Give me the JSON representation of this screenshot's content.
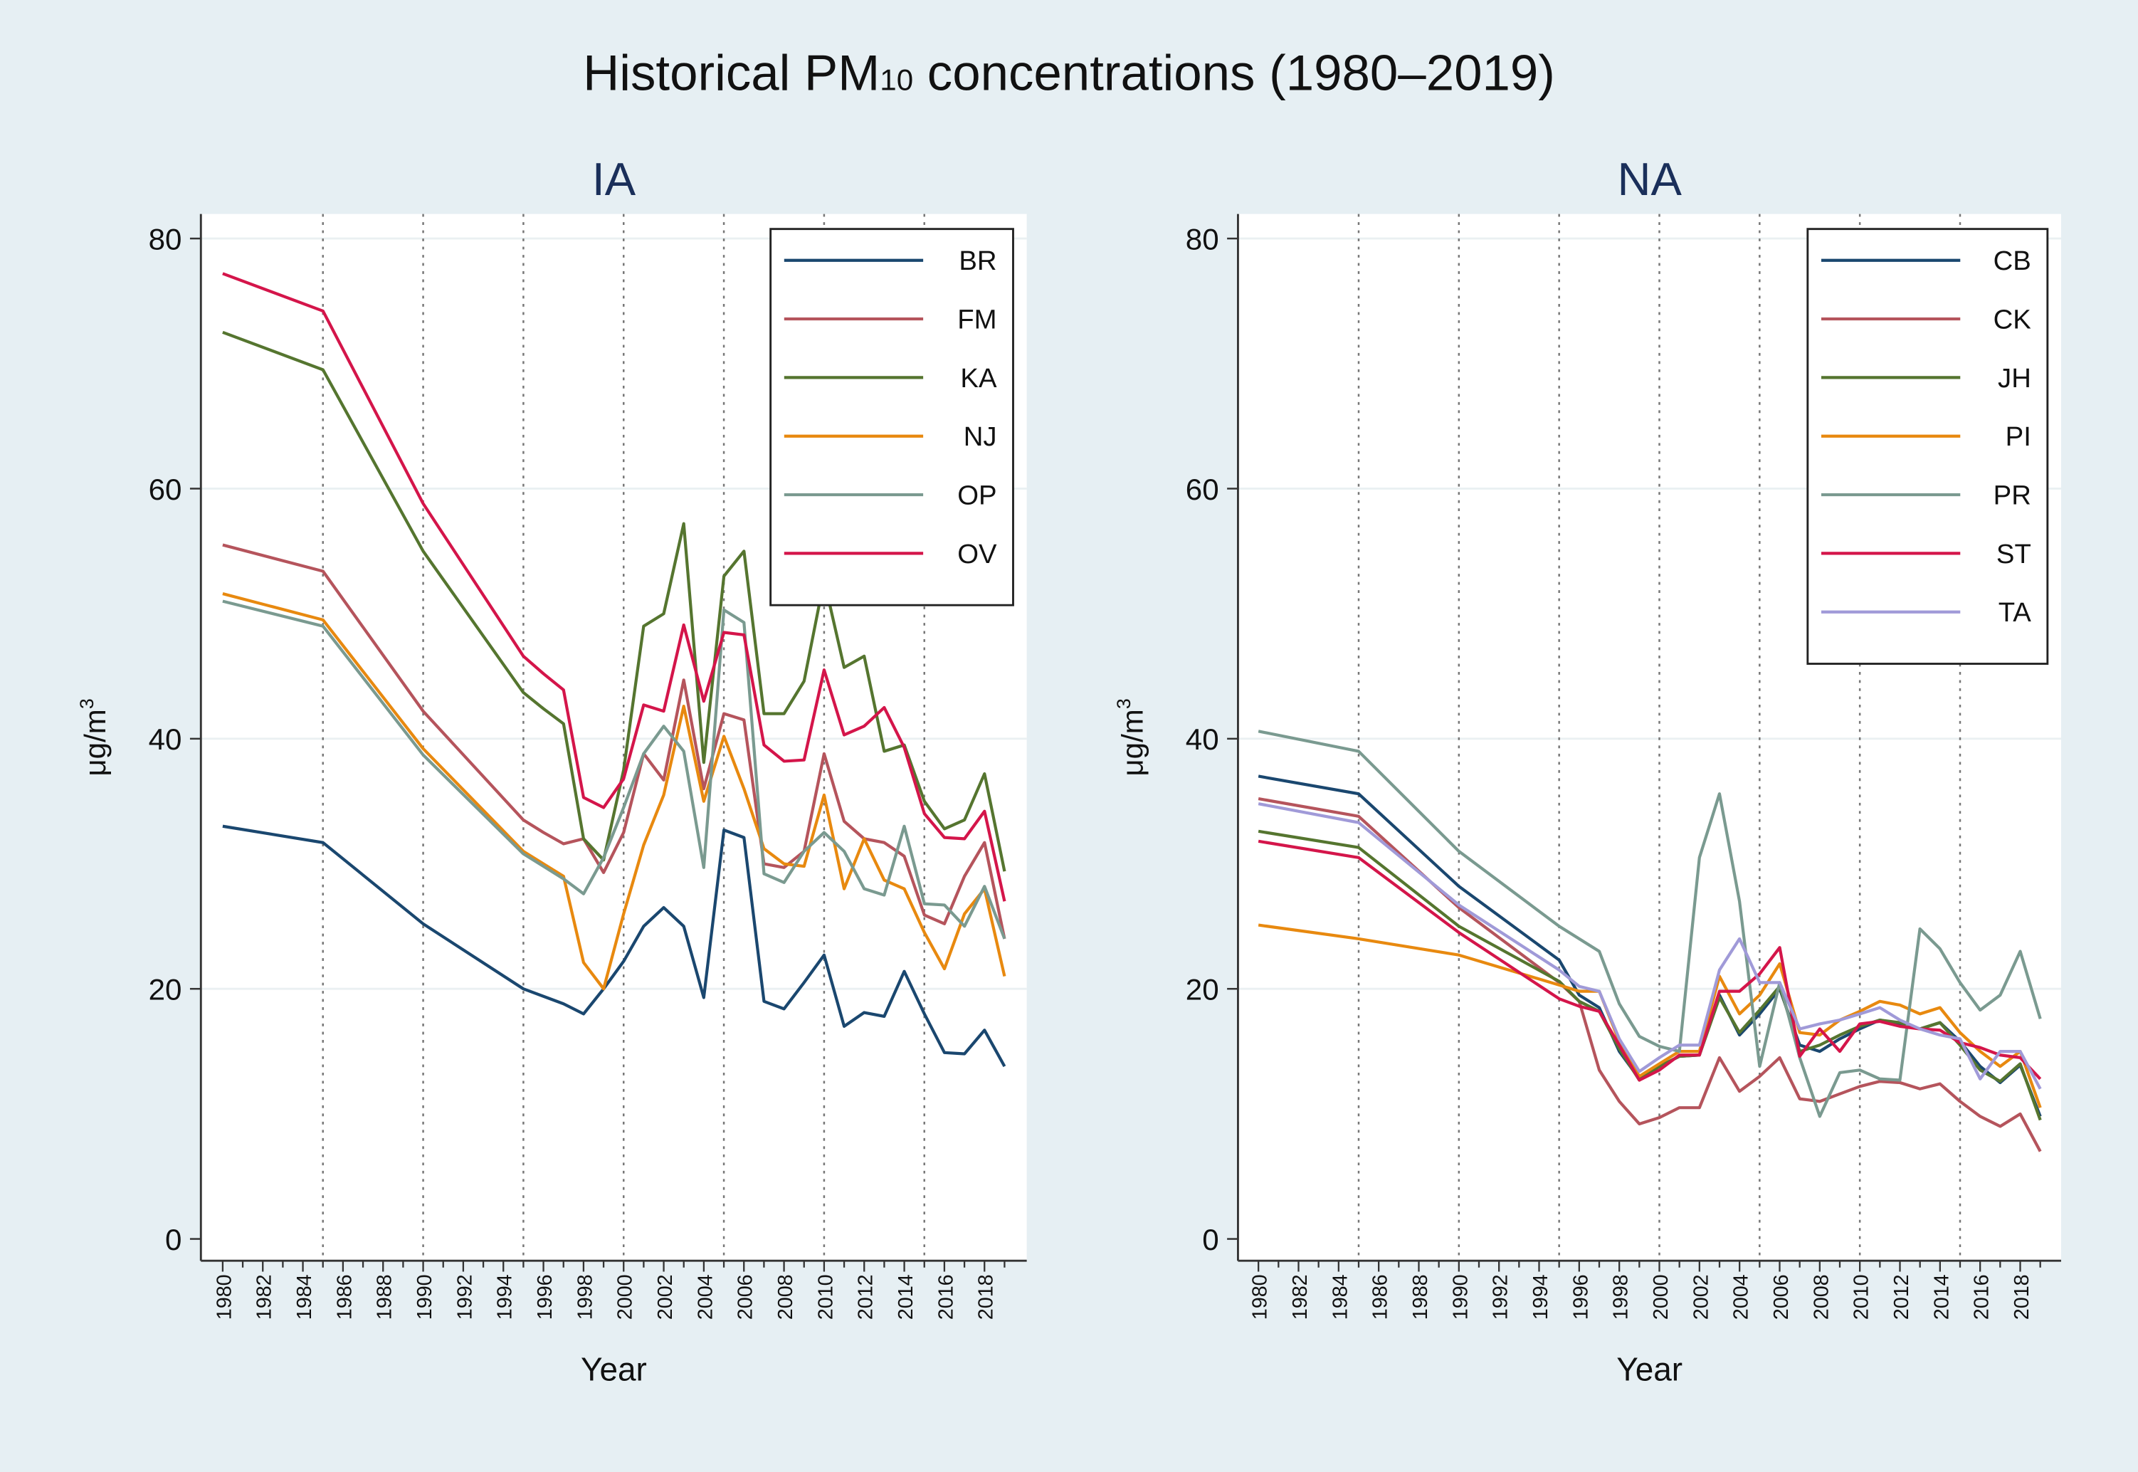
{
  "title_main": "Historical PM",
  "title_sub": "10",
  "title_rest": " concentrations (1980–2019)",
  "chart_data": [
    {
      "type": "line",
      "title": "IA",
      "xlabel": "Year",
      "ylabel": "μg/m",
      "ylabel_sup": "3",
      "ylim": [
        0,
        80
      ],
      "yticks": [
        "0",
        "20",
        "40",
        "60",
        "80"
      ],
      "xticks": [
        "1980",
        "1982",
        "1984",
        "1986",
        "1988",
        "1990",
        "1992",
        "1994",
        "1996",
        "1998",
        "2000",
        "2002",
        "2004",
        "2006",
        "2008",
        "2010",
        "2012",
        "2014",
        "2016",
        "2018"
      ],
      "vlines": [
        1985,
        1990,
        1995,
        2000,
        2005,
        2010,
        2015
      ],
      "legend_position": "top-right",
      "x": [
        1980,
        1985,
        1990,
        1995,
        1996,
        1997,
        1998,
        1999,
        2000,
        2001,
        2002,
        2003,
        2004,
        2005,
        2006,
        2007,
        2008,
        2009,
        2010,
        2011,
        2012,
        2013,
        2014,
        2015,
        2016,
        2017,
        2018,
        2019
      ],
      "series": [
        {
          "name": "BR",
          "color": "#1a476f",
          "values": [
            33,
            31.7,
            25.2,
            20,
            19.4,
            18.8,
            18,
            20,
            22.2,
            25,
            26.5,
            25,
            19.3,
            32.7,
            32.1,
            19,
            18.4,
            20.5,
            22.7,
            17,
            18.1,
            17.8,
            21.4,
            18,
            14.9,
            14.8,
            16.7,
            13.8
          ]
        },
        {
          "name": "FM",
          "color": "#b5545c",
          "values": [
            55.5,
            53.4,
            42.2,
            33.5,
            32.5,
            31.6,
            32,
            29.3,
            32.5,
            38.8,
            36.7,
            44.7,
            36,
            42,
            41.5,
            30,
            29.7,
            31,
            38.8,
            33.4,
            32,
            31.7,
            30.6,
            25.9,
            25.2,
            29,
            31.7,
            24
          ]
        },
        {
          "name": "KA",
          "color": "#55752f",
          "values": [
            72.5,
            69.5,
            55,
            43.7,
            42.4,
            41.2,
            32,
            30.3,
            37.5,
            49,
            50,
            57.2,
            38.1,
            53,
            55,
            42,
            42,
            44.6,
            52.7,
            45.7,
            46.6,
            39,
            39.5,
            35,
            32.8,
            33.5,
            37.2,
            29.4
          ]
        },
        {
          "name": "NJ",
          "color": "#e8890f",
          "values": [
            51.6,
            49.5,
            39.2,
            31,
            30,
            29,
            22.1,
            20,
            26,
            31.5,
            35.5,
            42.6,
            35,
            40.2,
            36,
            31.2,
            30,
            29.8,
            35.5,
            28,
            32,
            28.7,
            28,
            24.5,
            21.6,
            26,
            28,
            21
          ]
        },
        {
          "name": "OP",
          "color": "#7a9a90",
          "values": [
            51,
            49,
            38.7,
            30.8,
            29.8,
            28.8,
            27.6,
            30.5,
            34.5,
            38.8,
            41,
            39,
            29.7,
            50.3,
            49.3,
            29.2,
            28.5,
            31,
            32.5,
            31,
            28,
            27.5,
            33,
            26.8,
            26.7,
            25,
            28.2,
            24
          ]
        },
        {
          "name": "OV",
          "color": "#d4154a",
          "values": [
            77.2,
            74.2,
            58.8,
            46.6,
            45.2,
            43.9,
            35.3,
            34.5,
            36.8,
            42.7,
            42.2,
            49.1,
            43,
            48.5,
            48.3,
            39.5,
            38.2,
            38.3,
            45.5,
            40.3,
            41,
            42.5,
            39.3,
            34,
            32.1,
            32,
            34.2,
            27
          ]
        }
      ]
    },
    {
      "type": "line",
      "title": "NA",
      "xlabel": "Year",
      "ylabel": "μg/m",
      "ylabel_sup": "3",
      "ylim": [
        0,
        80
      ],
      "yticks": [
        "0",
        "20",
        "40",
        "60",
        "80"
      ],
      "xticks": [
        "1980",
        "1982",
        "1984",
        "1986",
        "1988",
        "1990",
        "1992",
        "1994",
        "1996",
        "1998",
        "2000",
        "2002",
        "2004",
        "2006",
        "2008",
        "2010",
        "2012",
        "2014",
        "2016",
        "2018"
      ],
      "vlines": [
        1985,
        1990,
        1995,
        2000,
        2005,
        2010,
        2015
      ],
      "legend_position": "top-right",
      "x": [
        1980,
        1985,
        1990,
        1995,
        1996,
        1997,
        1998,
        1999,
        2000,
        2001,
        2002,
        2003,
        2004,
        2005,
        2006,
        2007,
        2008,
        2009,
        2010,
        2011,
        2012,
        2013,
        2014,
        2015,
        2016,
        2017,
        2018,
        2019
      ],
      "series": [
        {
          "name": "CB",
          "color": "#1a476f",
          "values": [
            37,
            35.6,
            28.2,
            22.3,
            19.5,
            18.5,
            15,
            12.8,
            13.8,
            14.6,
            14.7,
            19.5,
            16.3,
            18,
            20,
            15.5,
            15,
            16,
            16.8,
            17.5,
            17.2,
            16.8,
            17.3,
            15.8,
            13.8,
            12.5,
            13.9,
            9.8
          ]
        },
        {
          "name": "CK",
          "color": "#b5545c",
          "values": [
            35.2,
            33.8,
            26.5,
            20.5,
            19,
            13.5,
            11,
            9.2,
            9.7,
            10.5,
            10.5,
            14.5,
            11.8,
            13,
            14.5,
            11.2,
            11,
            11.6,
            12.2,
            12.6,
            12.5,
            12,
            12.4,
            11,
            9.8,
            9,
            10,
            7
          ]
        },
        {
          "name": "JH",
          "color": "#55752f",
          "values": [
            32.6,
            31.3,
            25,
            20.6,
            19,
            18.2,
            15.2,
            12.7,
            13.8,
            14.6,
            14.7,
            19.3,
            16.5,
            18.3,
            20.2,
            15,
            15.5,
            16.3,
            17,
            17.5,
            17.3,
            16.8,
            17.3,
            15.5,
            13.5,
            12.6,
            14,
            9.5
          ]
        },
        {
          "name": "PI",
          "color": "#e8890f",
          "values": [
            25.1,
            24,
            22.7,
            20.3,
            19.8,
            19.8,
            15.8,
            13,
            14,
            15,
            15,
            21,
            18,
            19.5,
            22,
            16.5,
            16.3,
            17.5,
            18.2,
            19,
            18.7,
            18,
            18.5,
            16.5,
            15,
            13.8,
            15,
            10.5
          ]
        },
        {
          "name": "PR",
          "color": "#7a9a90",
          "values": [
            40.6,
            39,
            31,
            25,
            24,
            23,
            18.8,
            16.2,
            15.4,
            15,
            30.5,
            35.6,
            27,
            13.8,
            20.5,
            14.5,
            9.8,
            13.3,
            13.5,
            12.8,
            12.7,
            24.8,
            23.2,
            20.5,
            18.3,
            19.5,
            23,
            17.6
          ]
        },
        {
          "name": "ST",
          "color": "#d4154a",
          "values": [
            31.8,
            30.5,
            24.5,
            19.2,
            18.6,
            18.2,
            15.5,
            12.7,
            13.5,
            14.7,
            14.7,
            19.8,
            19.8,
            21.2,
            23.3,
            14.6,
            16.8,
            15,
            17.2,
            17.4,
            17,
            16.8,
            16.7,
            15.7,
            15.3,
            14.7,
            14.5,
            12.8
          ]
        },
        {
          "name": "TA",
          "color": "#a09ad8",
          "values": [
            34.8,
            33.3,
            26.7,
            21.5,
            20.2,
            19.8,
            16,
            13.4,
            14.5,
            15.5,
            15.5,
            21.5,
            24,
            20.5,
            20.5,
            16.8,
            17.2,
            17.5,
            18,
            18.5,
            17.5,
            16.8,
            16.3,
            16,
            12.8,
            15,
            15,
            12
          ]
        }
      ]
    }
  ]
}
